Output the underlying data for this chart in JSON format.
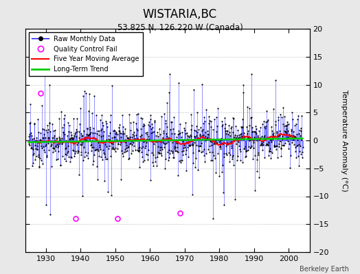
{
  "title": "WISTARIA,BC",
  "subtitle": "53.825 N, 126.220 W (Canada)",
  "ylabel": "Temperature Anomaly (°C)",
  "credit": "Berkeley Earth",
  "xlim": [
    1924,
    2006
  ],
  "ylim": [
    -20,
    20
  ],
  "yticks": [
    -20,
    -15,
    -10,
    -5,
    0,
    5,
    10,
    15,
    20
  ],
  "xticks": [
    1930,
    1940,
    1950,
    1960,
    1970,
    1980,
    1990,
    2000
  ],
  "bg_color": "#e8e8e8",
  "plot_bg_color": "#ffffff",
  "raw_color": "#0000ff",
  "raw_marker_color": "#000000",
  "qc_fail_color": "#ff00ff",
  "moving_avg_color": "#ff0000",
  "trend_color": "#00cc00",
  "seed": 42,
  "start_year": 1925.0,
  "end_year": 2004.0
}
